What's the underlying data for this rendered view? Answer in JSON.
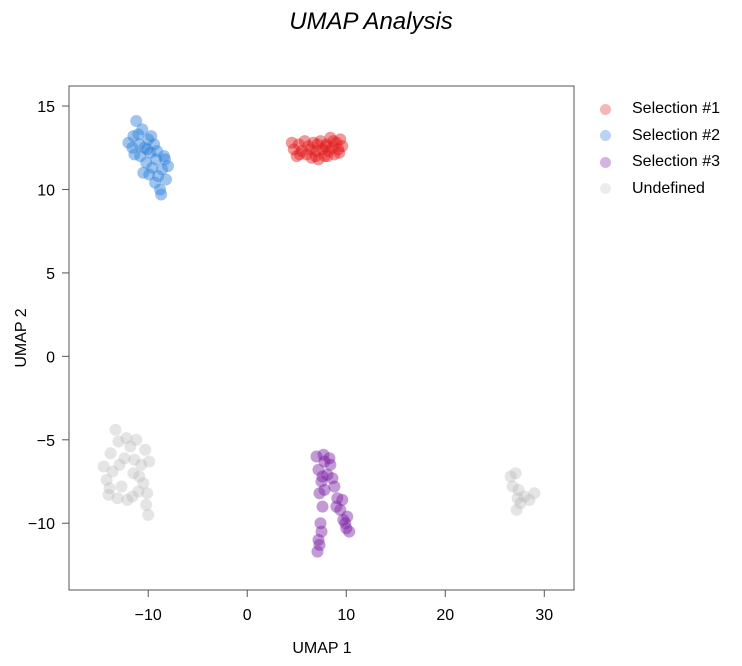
{
  "chart_data": {
    "type": "scatter",
    "title": "UMAP Analysis",
    "xlabel": "UMAP 1",
    "ylabel": "UMAP 2",
    "xlim": [
      -18,
      33
    ],
    "ylim": [
      -14,
      16.2
    ],
    "x_ticks": [
      -10,
      0,
      10,
      20,
      30
    ],
    "x_tick_labels": [
      "−10",
      "0",
      "10",
      "20",
      "30"
    ],
    "y_ticks": [
      15,
      10,
      5,
      0,
      -5,
      -10
    ],
    "y_tick_labels": [
      "15",
      "10",
      "5",
      "0",
      "−5",
      "−10"
    ],
    "grid": false,
    "legend_position": "right",
    "series": [
      {
        "name": "Selection #1",
        "color": "#e31a1c",
        "legend_color": "#f2b8b8",
        "points": [
          [
            4.5,
            12.8
          ],
          [
            4.7,
            12.4
          ],
          [
            5.0,
            12.0
          ],
          [
            5.2,
            12.7
          ],
          [
            5.5,
            12.3
          ],
          [
            5.8,
            12.9
          ],
          [
            6.0,
            12.1
          ],
          [
            6.2,
            12.6
          ],
          [
            6.5,
            11.9
          ],
          [
            6.7,
            12.8
          ],
          [
            7.0,
            12.3
          ],
          [
            7.2,
            11.8
          ],
          [
            7.4,
            12.9
          ],
          [
            7.6,
            12.4
          ],
          [
            7.8,
            12.0
          ],
          [
            8.0,
            12.7
          ],
          [
            8.2,
            12.3
          ],
          [
            8.4,
            13.1
          ],
          [
            8.6,
            12.5
          ],
          [
            8.8,
            12.1
          ],
          [
            9.0,
            12.8
          ],
          [
            9.2,
            12.4
          ],
          [
            9.4,
            13.0
          ],
          [
            9.6,
            12.6
          ],
          [
            5.3,
            12.1
          ],
          [
            6.4,
            12.4
          ],
          [
            7.1,
            12.7
          ],
          [
            7.9,
            12.6
          ],
          [
            8.7,
            12.9
          ],
          [
            9.3,
            12.2
          ],
          [
            6.9,
            12.0
          ],
          [
            8.1,
            12.0
          ]
        ]
      },
      {
        "name": "Selection #2",
        "color": "#2b7fd9",
        "legend_color": "#b9d4f2",
        "points": [
          [
            -12.0,
            12.8
          ],
          [
            -11.6,
            12.5
          ],
          [
            -11.2,
            14.1
          ],
          [
            -11.0,
            13.3
          ],
          [
            -10.8,
            12.0
          ],
          [
            -10.6,
            13.6
          ],
          [
            -10.4,
            12.5
          ],
          [
            -10.2,
            11.6
          ],
          [
            -10.0,
            13.0
          ],
          [
            -9.8,
            12.2
          ],
          [
            -9.6,
            11.3
          ],
          [
            -9.4,
            12.7
          ],
          [
            -9.2,
            11.8
          ],
          [
            -9.0,
            10.8
          ],
          [
            -8.8,
            10.0
          ],
          [
            -8.6,
            11.2
          ],
          [
            -8.4,
            12.0
          ],
          [
            -8.2,
            10.6
          ],
          [
            -8.0,
            11.4
          ],
          [
            -11.5,
            13.2
          ],
          [
            -10.9,
            12.7
          ],
          [
            -10.1,
            12.4
          ],
          [
            -9.7,
            13.2
          ],
          [
            -9.3,
            10.4
          ],
          [
            -8.7,
            9.7
          ],
          [
            -8.3,
            11.8
          ],
          [
            -10.5,
            11.0
          ],
          [
            -11.4,
            12.1
          ],
          [
            -9.9,
            10.9
          ],
          [
            -9.1,
            12.3
          ]
        ]
      },
      {
        "name": "Selection #3",
        "color": "#7b1fa2",
        "legend_color": "#d5b3e0",
        "points": [
          [
            7.0,
            -6.0
          ],
          [
            7.2,
            -6.8
          ],
          [
            7.5,
            -7.5
          ],
          [
            7.8,
            -6.3
          ],
          [
            8.1,
            -7.1
          ],
          [
            8.4,
            -6.5
          ],
          [
            7.3,
            -8.2
          ],
          [
            7.6,
            -9.0
          ],
          [
            7.4,
            -10.0
          ],
          [
            7.2,
            -11.0
          ],
          [
            7.1,
            -11.7
          ],
          [
            7.3,
            -11.3
          ],
          [
            8.8,
            -7.8
          ],
          [
            9.1,
            -8.5
          ],
          [
            9.4,
            -9.2
          ],
          [
            9.7,
            -9.8
          ],
          [
            10.0,
            -10.3
          ],
          [
            10.3,
            -10.5
          ],
          [
            9.0,
            -9.0
          ],
          [
            9.6,
            -8.6
          ],
          [
            10.1,
            -9.6
          ],
          [
            7.8,
            -8.0
          ],
          [
            8.3,
            -6.1
          ],
          [
            7.7,
            -5.9
          ],
          [
            7.5,
            -10.5
          ],
          [
            9.9,
            -10.0
          ],
          [
            7.6,
            -7.2
          ],
          [
            8.6,
            -7.3
          ]
        ]
      },
      {
        "name": "Undefined",
        "color": "#b5b5b5",
        "legend_color": "#ececec",
        "points": [
          [
            -14.5,
            -6.6
          ],
          [
            -14.2,
            -7.4
          ],
          [
            -14.0,
            -8.3
          ],
          [
            -13.8,
            -5.8
          ],
          [
            -13.6,
            -6.9
          ],
          [
            -13.3,
            -4.4
          ],
          [
            -13.0,
            -5.1
          ],
          [
            -12.7,
            -7.8
          ],
          [
            -12.4,
            -6.1
          ],
          [
            -12.1,
            -8.6
          ],
          [
            -11.8,
            -5.4
          ],
          [
            -11.5,
            -7.0
          ],
          [
            -11.2,
            -5.0
          ],
          [
            -11.0,
            -8.1
          ],
          [
            -10.7,
            -6.5
          ],
          [
            -10.5,
            -7.6
          ],
          [
            -10.2,
            -8.9
          ],
          [
            -10.0,
            -9.5
          ],
          [
            -9.9,
            -6.3
          ],
          [
            -10.3,
            -5.6
          ],
          [
            -11.6,
            -8.4
          ],
          [
            -12.9,
            -6.5
          ],
          [
            -13.9,
            -7.9
          ],
          [
            -12.2,
            -4.9
          ],
          [
            -10.9,
            -7.2
          ],
          [
            -10.1,
            -8.2
          ],
          [
            -13.1,
            -8.5
          ],
          [
            -11.4,
            -6.2
          ],
          [
            26.6,
            -7.2
          ],
          [
            26.8,
            -7.8
          ],
          [
            27.1,
            -7.0
          ],
          [
            27.3,
            -8.5
          ],
          [
            27.2,
            -9.2
          ],
          [
            27.6,
            -8.8
          ],
          [
            28.0,
            -8.4
          ],
          [
            28.5,
            -8.6
          ],
          [
            29.0,
            -8.2
          ],
          [
            27.4,
            -8.0
          ]
        ]
      }
    ]
  }
}
